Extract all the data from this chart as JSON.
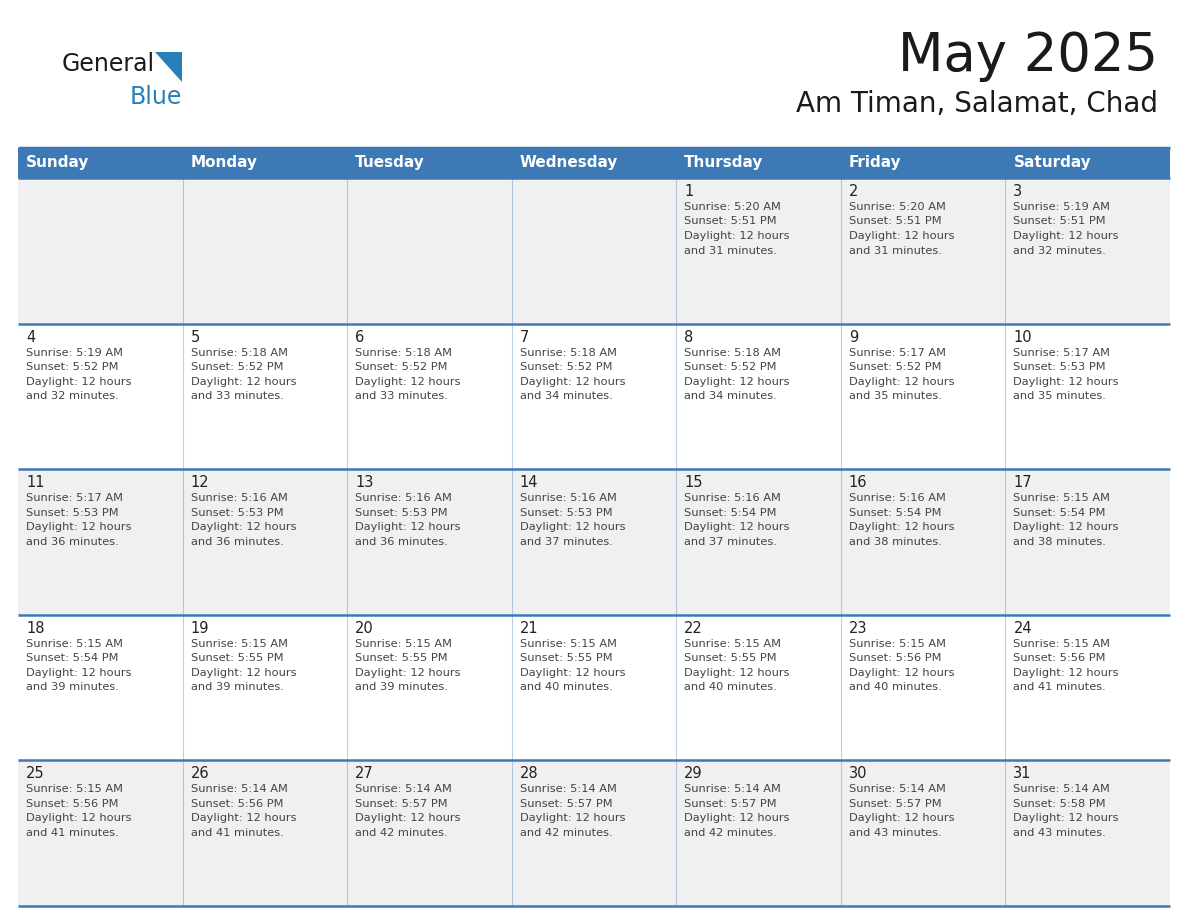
{
  "title": "May 2025",
  "subtitle": "Am Timan, Salamat, Chad",
  "days_of_week": [
    "Sunday",
    "Monday",
    "Tuesday",
    "Wednesday",
    "Thursday",
    "Friday",
    "Saturday"
  ],
  "header_bg_color": "#3d7ab5",
  "header_text_color": "#ffffff",
  "row_colors": [
    "#f0f0f0",
    "#ffffff"
  ],
  "border_color": "#3d7ab5",
  "cell_text_color": "#444444",
  "day_number_color": "#222222",
  "logo_black": "#1a1a1a",
  "logo_blue": "#2980b9",
  "calendar_data": [
    [
      {
        "day": "",
        "sunrise": "",
        "sunset": "",
        "daylight": ""
      },
      {
        "day": "",
        "sunrise": "",
        "sunset": "",
        "daylight": ""
      },
      {
        "day": "",
        "sunrise": "",
        "sunset": "",
        "daylight": ""
      },
      {
        "day": "",
        "sunrise": "",
        "sunset": "",
        "daylight": ""
      },
      {
        "day": "1",
        "sunrise": "5:20 AM",
        "sunset": "5:51 PM",
        "daylight": "12 hours and 31 minutes."
      },
      {
        "day": "2",
        "sunrise": "5:20 AM",
        "sunset": "5:51 PM",
        "daylight": "12 hours and 31 minutes."
      },
      {
        "day": "3",
        "sunrise": "5:19 AM",
        "sunset": "5:51 PM",
        "daylight": "12 hours and 32 minutes."
      }
    ],
    [
      {
        "day": "4",
        "sunrise": "5:19 AM",
        "sunset": "5:52 PM",
        "daylight": "12 hours and 32 minutes."
      },
      {
        "day": "5",
        "sunrise": "5:18 AM",
        "sunset": "5:52 PM",
        "daylight": "12 hours and 33 minutes."
      },
      {
        "day": "6",
        "sunrise": "5:18 AM",
        "sunset": "5:52 PM",
        "daylight": "12 hours and 33 minutes."
      },
      {
        "day": "7",
        "sunrise": "5:18 AM",
        "sunset": "5:52 PM",
        "daylight": "12 hours and 34 minutes."
      },
      {
        "day": "8",
        "sunrise": "5:18 AM",
        "sunset": "5:52 PM",
        "daylight": "12 hours and 34 minutes."
      },
      {
        "day": "9",
        "sunrise": "5:17 AM",
        "sunset": "5:52 PM",
        "daylight": "12 hours and 35 minutes."
      },
      {
        "day": "10",
        "sunrise": "5:17 AM",
        "sunset": "5:53 PM",
        "daylight": "12 hours and 35 minutes."
      }
    ],
    [
      {
        "day": "11",
        "sunrise": "5:17 AM",
        "sunset": "5:53 PM",
        "daylight": "12 hours and 36 minutes."
      },
      {
        "day": "12",
        "sunrise": "5:16 AM",
        "sunset": "5:53 PM",
        "daylight": "12 hours and 36 minutes."
      },
      {
        "day": "13",
        "sunrise": "5:16 AM",
        "sunset": "5:53 PM",
        "daylight": "12 hours and 36 minutes."
      },
      {
        "day": "14",
        "sunrise": "5:16 AM",
        "sunset": "5:53 PM",
        "daylight": "12 hours and 37 minutes."
      },
      {
        "day": "15",
        "sunrise": "5:16 AM",
        "sunset": "5:54 PM",
        "daylight": "12 hours and 37 minutes."
      },
      {
        "day": "16",
        "sunrise": "5:16 AM",
        "sunset": "5:54 PM",
        "daylight": "12 hours and 38 minutes."
      },
      {
        "day": "17",
        "sunrise": "5:15 AM",
        "sunset": "5:54 PM",
        "daylight": "12 hours and 38 minutes."
      }
    ],
    [
      {
        "day": "18",
        "sunrise": "5:15 AM",
        "sunset": "5:54 PM",
        "daylight": "12 hours and 39 minutes."
      },
      {
        "day": "19",
        "sunrise": "5:15 AM",
        "sunset": "5:55 PM",
        "daylight": "12 hours and 39 minutes."
      },
      {
        "day": "20",
        "sunrise": "5:15 AM",
        "sunset": "5:55 PM",
        "daylight": "12 hours and 39 minutes."
      },
      {
        "day": "21",
        "sunrise": "5:15 AM",
        "sunset": "5:55 PM",
        "daylight": "12 hours and 40 minutes."
      },
      {
        "day": "22",
        "sunrise": "5:15 AM",
        "sunset": "5:55 PM",
        "daylight": "12 hours and 40 minutes."
      },
      {
        "day": "23",
        "sunrise": "5:15 AM",
        "sunset": "5:56 PM",
        "daylight": "12 hours and 40 minutes."
      },
      {
        "day": "24",
        "sunrise": "5:15 AM",
        "sunset": "5:56 PM",
        "daylight": "12 hours and 41 minutes."
      }
    ],
    [
      {
        "day": "25",
        "sunrise": "5:15 AM",
        "sunset": "5:56 PM",
        "daylight": "12 hours and 41 minutes."
      },
      {
        "day": "26",
        "sunrise": "5:14 AM",
        "sunset": "5:56 PM",
        "daylight": "12 hours and 41 minutes."
      },
      {
        "day": "27",
        "sunrise": "5:14 AM",
        "sunset": "5:57 PM",
        "daylight": "12 hours and 42 minutes."
      },
      {
        "day": "28",
        "sunrise": "5:14 AM",
        "sunset": "5:57 PM",
        "daylight": "12 hours and 42 minutes."
      },
      {
        "day": "29",
        "sunrise": "5:14 AM",
        "sunset": "5:57 PM",
        "daylight": "12 hours and 42 minutes."
      },
      {
        "day": "30",
        "sunrise": "5:14 AM",
        "sunset": "5:57 PM",
        "daylight": "12 hours and 43 minutes."
      },
      {
        "day": "31",
        "sunrise": "5:14 AM",
        "sunset": "5:58 PM",
        "daylight": "12 hours and 43 minutes."
      }
    ]
  ]
}
